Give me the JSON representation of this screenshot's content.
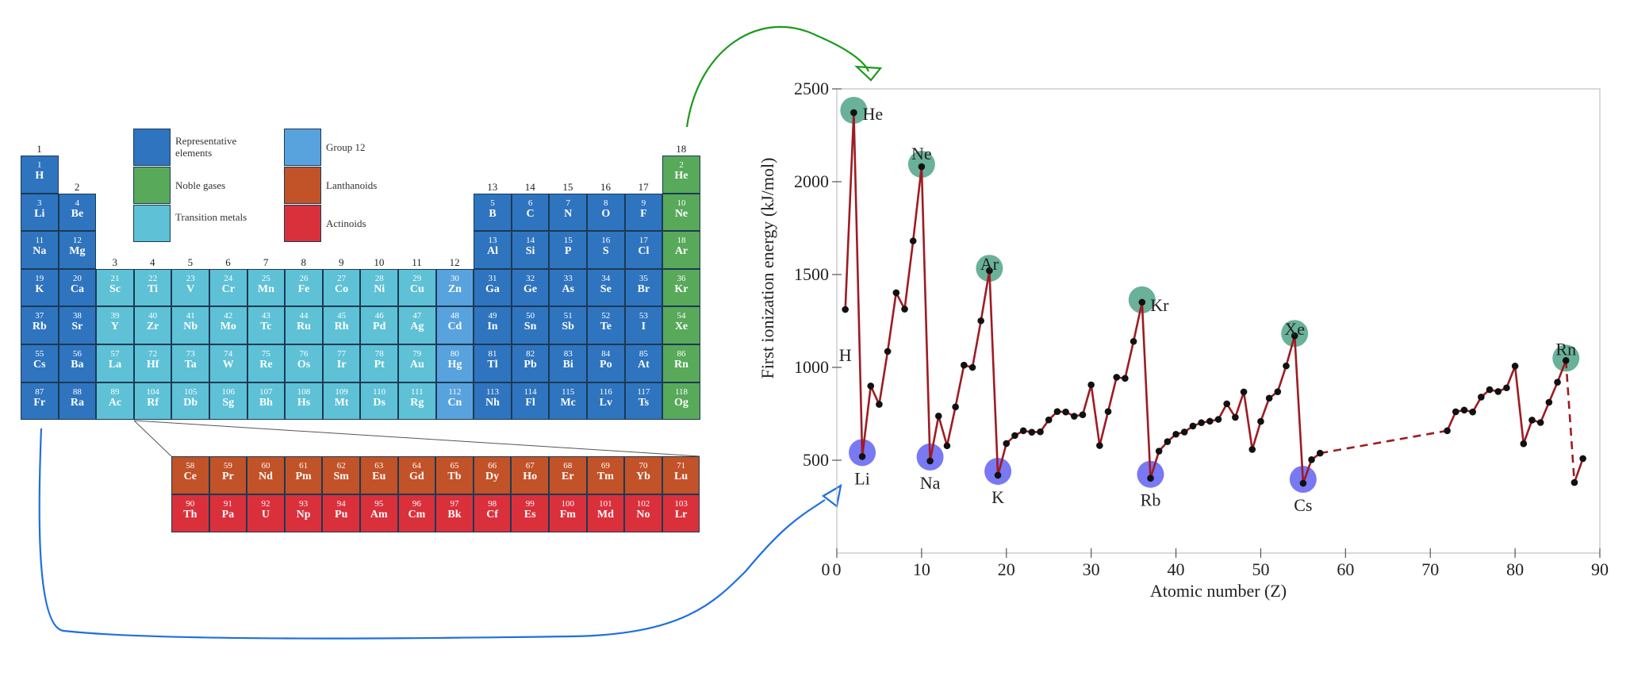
{
  "legend": [
    {
      "label": "Representative elements",
      "color": "#2f74bf"
    },
    {
      "label": "Noble gases",
      "color": "#58a95a"
    },
    {
      "label": "Transition metals",
      "color": "#5ec1d6"
    },
    {
      "label": "Group 12",
      "color": "#58a2dd"
    },
    {
      "label": "Lanthanoids",
      "color": "#c25228"
    },
    {
      "label": "Actinoids",
      "color": "#da303c"
    }
  ],
  "groups": [
    "1",
    "2",
    "3",
    "4",
    "5",
    "6",
    "7",
    "8",
    "9",
    "10",
    "11",
    "12",
    "13",
    "14",
    "15",
    "16",
    "17",
    "18"
  ],
  "elements": [
    [
      "1",
      "H"
    ],
    [
      "2",
      "He"
    ],
    [
      "3",
      "Li"
    ],
    [
      "4",
      "Be"
    ],
    [
      "5",
      "B"
    ],
    [
      "6",
      "C"
    ],
    [
      "7",
      "N"
    ],
    [
      "8",
      "O"
    ],
    [
      "9",
      "F"
    ],
    [
      "10",
      "Ne"
    ],
    [
      "11",
      "Na"
    ],
    [
      "12",
      "Mg"
    ],
    [
      "13",
      "Al"
    ],
    [
      "14",
      "Si"
    ],
    [
      "15",
      "P"
    ],
    [
      "16",
      "S"
    ],
    [
      "17",
      "Cl"
    ],
    [
      "18",
      "Ar"
    ],
    [
      "19",
      "K"
    ],
    [
      "20",
      "Ca"
    ],
    [
      "21",
      "Sc"
    ],
    [
      "22",
      "Ti"
    ],
    [
      "23",
      "V"
    ],
    [
      "24",
      "Cr"
    ],
    [
      "25",
      "Mn"
    ],
    [
      "26",
      "Fe"
    ],
    [
      "27",
      "Co"
    ],
    [
      "28",
      "Ni"
    ],
    [
      "29",
      "Cu"
    ],
    [
      "30",
      "Zn"
    ],
    [
      "31",
      "Ga"
    ],
    [
      "32",
      "Ge"
    ],
    [
      "33",
      "As"
    ],
    [
      "34",
      "Se"
    ],
    [
      "35",
      "Br"
    ],
    [
      "36",
      "Kr"
    ],
    [
      "37",
      "Rb"
    ],
    [
      "38",
      "Sr"
    ],
    [
      "39",
      "Y"
    ],
    [
      "40",
      "Zr"
    ],
    [
      "41",
      "Nb"
    ],
    [
      "42",
      "Mo"
    ],
    [
      "43",
      "Tc"
    ],
    [
      "44",
      "Ru"
    ],
    [
      "45",
      "Rh"
    ],
    [
      "46",
      "Pd"
    ],
    [
      "47",
      "Ag"
    ],
    [
      "48",
      "Cd"
    ],
    [
      "49",
      "In"
    ],
    [
      "50",
      "Sn"
    ],
    [
      "51",
      "Sb"
    ],
    [
      "52",
      "Te"
    ],
    [
      "53",
      "I"
    ],
    [
      "54",
      "Xe"
    ],
    [
      "55",
      "Cs"
    ],
    [
      "56",
      "Ba"
    ],
    [
      "57",
      "La"
    ],
    [
      "72",
      "Hf"
    ],
    [
      "73",
      "Ta"
    ],
    [
      "74",
      "W"
    ],
    [
      "75",
      "Re"
    ],
    [
      "76",
      "Os"
    ],
    [
      "77",
      "Ir"
    ],
    [
      "78",
      "Pt"
    ],
    [
      "79",
      "Au"
    ],
    [
      "80",
      "Hg"
    ],
    [
      "81",
      "Tl"
    ],
    [
      "82",
      "Pb"
    ],
    [
      "83",
      "Bi"
    ],
    [
      "84",
      "Po"
    ],
    [
      "85",
      "At"
    ],
    [
      "86",
      "Rn"
    ],
    [
      "87",
      "Fr"
    ],
    [
      "88",
      "Ra"
    ],
    [
      "89",
      "Ac"
    ],
    [
      "104",
      "Rf"
    ],
    [
      "105",
      "Db"
    ],
    [
      "106",
      "Sg"
    ],
    [
      "107",
      "Bh"
    ],
    [
      "108",
      "Hs"
    ],
    [
      "109",
      "Mt"
    ],
    [
      "110",
      "Ds"
    ],
    [
      "111",
      "Rg"
    ],
    [
      "112",
      "Cn"
    ],
    [
      "113",
      "Nh"
    ],
    [
      "114",
      "Fl"
    ],
    [
      "115",
      "Mc"
    ],
    [
      "116",
      "Lv"
    ],
    [
      "117",
      "Ts"
    ],
    [
      "118",
      "Og"
    ]
  ],
  "lanthanoids": [
    [
      "58",
      "Ce"
    ],
    [
      "59",
      "Pr"
    ],
    [
      "60",
      "Nd"
    ],
    [
      "61",
      "Pm"
    ],
    [
      "62",
      "Sm"
    ],
    [
      "63",
      "Eu"
    ],
    [
      "64",
      "Gd"
    ],
    [
      "65",
      "Tb"
    ],
    [
      "66",
      "Dy"
    ],
    [
      "67",
      "Ho"
    ],
    [
      "68",
      "Er"
    ],
    [
      "69",
      "Tm"
    ],
    [
      "70",
      "Yb"
    ],
    [
      "71",
      "Lu"
    ]
  ],
  "actinoids": [
    [
      "90",
      "Th"
    ],
    [
      "91",
      "Pa"
    ],
    [
      "92",
      "U"
    ],
    [
      "93",
      "Np"
    ],
    [
      "94",
      "Pu"
    ],
    [
      "95",
      "Am"
    ],
    [
      "96",
      "Cm"
    ],
    [
      "97",
      "Bk"
    ],
    [
      "98",
      "Cf"
    ],
    [
      "99",
      "Es"
    ],
    [
      "100",
      "Fm"
    ],
    [
      "101",
      "Md"
    ],
    [
      "102",
      "No"
    ],
    [
      "103",
      "Lr"
    ]
  ],
  "arrows": {
    "top_color": "#1a9a1a",
    "bottom_color": "#1f6fe0"
  },
  "chart_data": {
    "type": "line",
    "title": "",
    "xlabel": "Atomic number (Z)",
    "ylabel": "First ionization energy (kJ/mol)",
    "xlim": [
      0,
      90
    ],
    "ylim": [
      0,
      2500
    ],
    "xticks": [
      0,
      10,
      20,
      30,
      40,
      50,
      60,
      70,
      80,
      90
    ],
    "yticks": [
      500,
      1000,
      1500,
      2000,
      2500
    ],
    "line_color": "#9e1b22",
    "series": [
      {
        "style": "solid",
        "x": [
          1,
          2,
          3,
          4,
          5,
          6,
          7,
          8,
          9,
          10,
          11,
          12,
          13,
          14,
          15,
          16,
          17,
          18,
          19,
          20,
          21,
          22,
          23,
          24,
          25,
          26,
          27,
          28,
          29,
          30,
          31,
          32,
          33,
          34,
          35,
          36,
          37,
          38,
          39,
          40,
          41,
          42,
          43,
          44,
          45,
          46,
          47,
          48,
          49,
          50,
          51,
          52,
          53,
          54,
          55,
          56,
          57
        ],
        "y": [
          1312,
          2372,
          520,
          900,
          801,
          1086,
          1402,
          1314,
          1681,
          2081,
          496,
          738,
          578,
          787,
          1012,
          1000,
          1251,
          1521,
          419,
          590,
          633,
          659,
          651,
          653,
          717,
          762,
          760,
          737,
          745,
          906,
          579,
          762,
          947,
          941,
          1140,
          1351,
          403,
          549,
          600,
          640,
          652,
          684,
          702,
          710,
          720,
          804,
          731,
          868,
          558,
          709,
          834,
          869,
          1008,
          1170,
          376,
          503,
          538
        ]
      },
      {
        "style": "dashed",
        "x": [
          57,
          72
        ],
        "y": [
          538,
          659
        ]
      },
      {
        "style": "solid",
        "x": [
          72,
          73,
          74,
          75,
          76,
          77,
          78,
          79,
          80,
          81,
          82,
          83,
          84,
          85,
          86
        ],
        "y": [
          659,
          761,
          770,
          760,
          840,
          880,
          870,
          890,
          1007,
          589,
          716,
          703,
          812,
          920,
          1037
        ]
      },
      {
        "style": "dashed",
        "x": [
          86,
          87
        ],
        "y": [
          1037,
          380
        ]
      },
      {
        "style": "solid",
        "x": [
          87,
          88
        ],
        "y": [
          380,
          509
        ]
      }
    ],
    "labels": [
      {
        "text": "He",
        "z": 2,
        "energy": 2372,
        "kind": "noble"
      },
      {
        "text": "Ne",
        "z": 10,
        "energy": 2081,
        "kind": "noble"
      },
      {
        "text": "Ar",
        "z": 18,
        "energy": 1521,
        "kind": "noble"
      },
      {
        "text": "Kr",
        "z": 36,
        "energy": 1351,
        "kind": "noble"
      },
      {
        "text": "Xe",
        "z": 54,
        "energy": 1170,
        "kind": "noble"
      },
      {
        "text": "Rn",
        "z": 86,
        "energy": 1037,
        "kind": "noble"
      },
      {
        "text": "H",
        "z": 1,
        "energy": 1312,
        "kind": "plain"
      },
      {
        "text": "Li",
        "z": 3,
        "energy": 520,
        "kind": "alkali"
      },
      {
        "text": "Na",
        "z": 11,
        "energy": 496,
        "kind": "alkali"
      },
      {
        "text": "K",
        "z": 19,
        "energy": 419,
        "kind": "alkali"
      },
      {
        "text": "Rb",
        "z": 37,
        "energy": 403,
        "kind": "alkali"
      },
      {
        "text": "Cs",
        "z": 55,
        "energy": 376,
        "kind": "alkali"
      }
    ],
    "highlight_colors": {
      "noble": "#5aa88e",
      "alkali": "#6a6af2"
    }
  }
}
